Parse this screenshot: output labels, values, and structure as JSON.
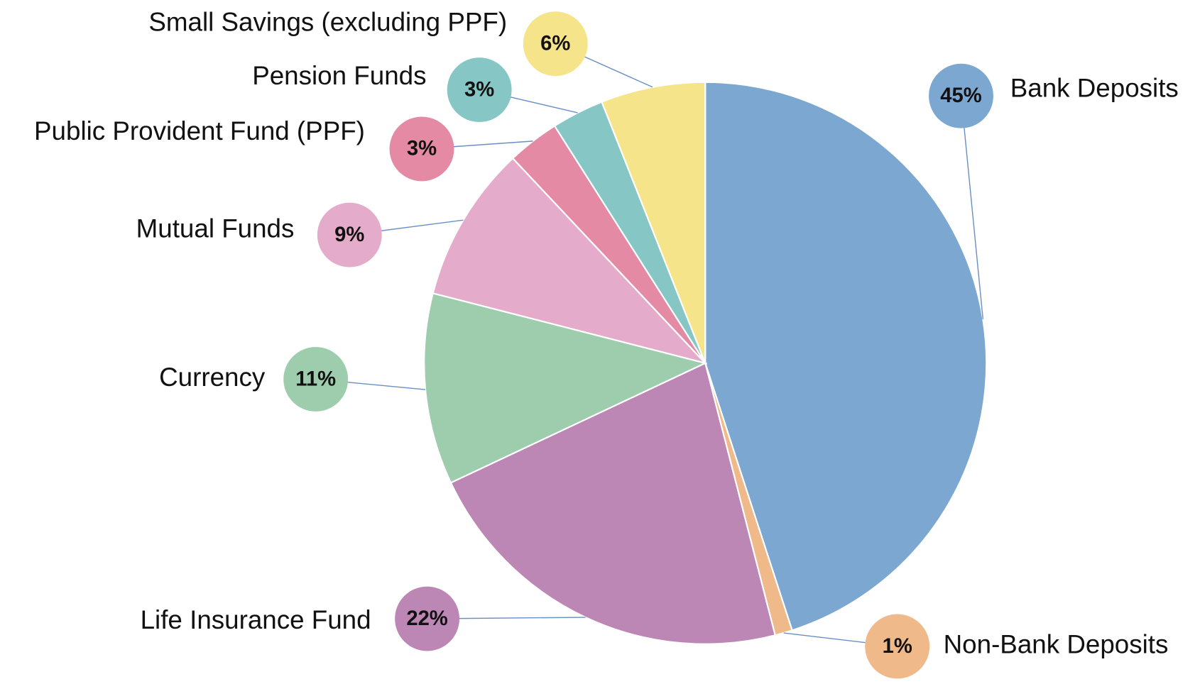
{
  "chart_data": {
    "type": "pie",
    "categories": [
      "Bank Deposits",
      "Non-Bank Deposits",
      "Life Insurance Fund",
      "Currency",
      "Mutual Funds",
      "Public Provident Fund (PPF)",
      "Pension Funds",
      "Small Savings (excluding PPF)"
    ],
    "values": [
      45,
      1,
      22,
      11,
      9,
      3,
      3,
      6
    ],
    "value_labels": [
      "45%",
      "1%",
      "22%",
      "11%",
      "9%",
      "3%",
      "3%",
      "6%"
    ],
    "colors": [
      "#7ba7d0",
      "#efb98a",
      "#bc86b5",
      "#9ecdae",
      "#e5abca",
      "#e58aa5",
      "#86c7c6",
      "#f5e48a"
    ]
  }
}
